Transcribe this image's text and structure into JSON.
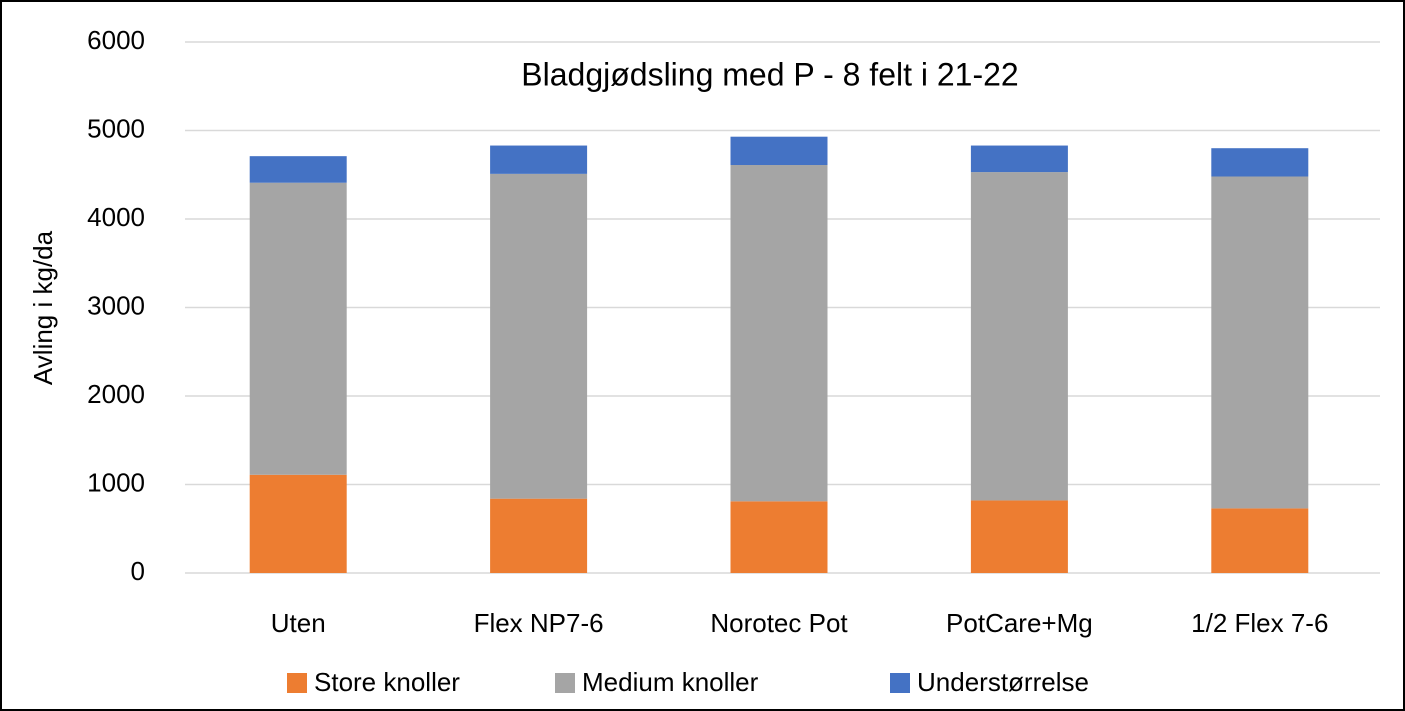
{
  "chart_data": {
    "type": "stacked_bar",
    "title": "Bladgjødsling med P - 8 felt i 21-22",
    "y_label": "Avling i kg/da",
    "categories": [
      "Uten",
      "Flex NP7-6",
      "Norotec Pot",
      "PotCare+Mg",
      "1/2 Flex 7-6"
    ],
    "series": [
      {
        "name": "Store knoller",
        "color": "#ed7d31",
        "values": [
          1110,
          840,
          810,
          820,
          730
        ]
      },
      {
        "name": "Medium knoller",
        "color": "#a5a5a5",
        "values": [
          3300,
          3670,
          3800,
          3710,
          3750
        ]
      },
      {
        "name": "Understørrelse",
        "color": "#4472c4",
        "values": [
          300,
          320,
          320,
          300,
          320
        ]
      }
    ],
    "ylim": [
      0,
      6000
    ],
    "yticks": [
      0,
      1000,
      2000,
      3000,
      4000,
      5000,
      6000
    ],
    "grid": true,
    "legend": "bottom"
  }
}
